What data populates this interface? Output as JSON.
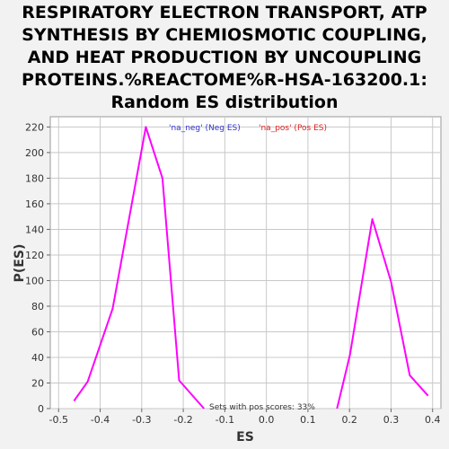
{
  "chart_data": {
    "type": "line",
    "title": "RESPIRATORY ELECTRON TRANSPORT, ATP SYNTHESIS BY CHEMIOSMOTIC COUPLING, AND HEAT PRODUCTION BY UNCOUPLING PROTEINS.%REACTOME%R-HSA-163200.1: Random ES distribution",
    "xlabel": "ES",
    "ylabel": "P(ES)",
    "xlim": [
      -0.52,
      0.42
    ],
    "ylim": [
      0,
      228
    ],
    "xticks": [
      "-0.5",
      "-0.4",
      "-0.3",
      "-0.2",
      "-0.1",
      "0.0",
      "0.1",
      "0.2",
      "0.3",
      "0.4"
    ],
    "yticks": [
      "0",
      "20",
      "40",
      "60",
      "80",
      "100",
      "120",
      "140",
      "160",
      "180",
      "200",
      "220"
    ],
    "grid": true,
    "legend": [
      {
        "label": "'na_neg' (Neg ES)",
        "color": "#3333cc"
      },
      {
        "label": "'na_pos' (Pos ES)",
        "color": "#dd2222"
      }
    ],
    "annotation": "Sets with pos scores: 33%",
    "series": [
      {
        "color": "#ff00ff",
        "x": [
          -0.463,
          -0.43,
          -0.37,
          -0.29,
          -0.25,
          -0.21,
          -0.15
        ],
        "y": [
          6,
          21,
          78,
          220,
          180,
          22,
          0
        ]
      },
      {
        "color": "#ff00ff",
        "x": [
          0.17,
          0.201,
          0.255,
          0.3,
          0.345,
          0.389
        ],
        "y": [
          0,
          42,
          148,
          99,
          26,
          10
        ]
      }
    ]
  }
}
